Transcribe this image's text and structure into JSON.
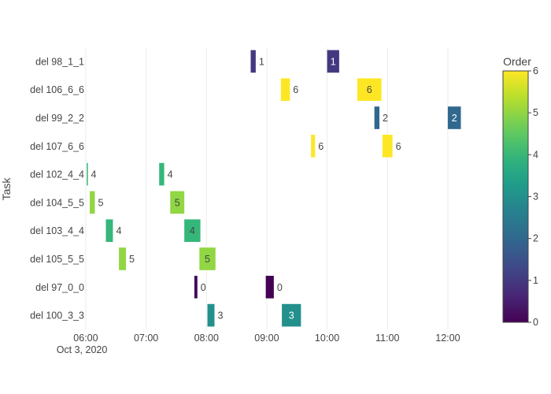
{
  "chart_data": {
    "type": "gantt",
    "title": "",
    "xlabel": "",
    "ylabel": "Task",
    "x_date_label": "Oct 3, 2020",
    "xlim": [
      "05:53",
      "12:40"
    ],
    "x_ticks": [
      "06:00",
      "07:00",
      "08:00",
      "09:00",
      "10:00",
      "11:00",
      "12:00"
    ],
    "tasks": [
      "del 98_1_1",
      "del 106_6_6",
      "del 99_2_2",
      "del 107_6_6",
      "del 102_4_4",
      "del 104_5_5",
      "del 103_4_4",
      "del 105_5_5",
      "del 97_0_0",
      "del 100_3_3"
    ],
    "bars": [
      {
        "task": "del 98_1_1",
        "start": "08:44",
        "end": "08:49",
        "order": 1
      },
      {
        "task": "del 98_1_1",
        "start": "10:00",
        "end": "10:12",
        "order": 1
      },
      {
        "task": "del 106_6_6",
        "start": "09:14",
        "end": "09:23",
        "order": 6
      },
      {
        "task": "del 106_6_6",
        "start": "10:30",
        "end": "10:54",
        "order": 6
      },
      {
        "task": "del 99_2_2",
        "start": "10:47",
        "end": "10:52",
        "order": 2
      },
      {
        "task": "del 99_2_2",
        "start": "12:00",
        "end": "12:13",
        "order": 2
      },
      {
        "task": "del 107_6_6",
        "start": "09:44",
        "end": "09:48",
        "order": 6
      },
      {
        "task": "del 107_6_6",
        "start": "10:55",
        "end": "11:05",
        "order": 6
      },
      {
        "task": "del 102_4_4",
        "start": "06:01",
        "end": "06:02",
        "order": 4
      },
      {
        "task": "del 102_4_4",
        "start": "07:13",
        "end": "07:18",
        "order": 4
      },
      {
        "task": "del 104_5_5",
        "start": "06:04",
        "end": "06:09",
        "order": 5
      },
      {
        "task": "del 104_5_5",
        "start": "07:24",
        "end": "07:38",
        "order": 5
      },
      {
        "task": "del 103_4_4",
        "start": "06:20",
        "end": "06:27",
        "order": 4
      },
      {
        "task": "del 103_4_4",
        "start": "07:38",
        "end": "07:54",
        "order": 4
      },
      {
        "task": "del 105_5_5",
        "start": "06:33",
        "end": "06:40",
        "order": 5
      },
      {
        "task": "del 105_5_5",
        "start": "07:53",
        "end": "08:09",
        "order": 5
      },
      {
        "task": "del 97_0_0",
        "start": "07:48",
        "end": "07:51",
        "order": 0
      },
      {
        "task": "del 97_0_0",
        "start": "08:59",
        "end": "09:07",
        "order": 0
      },
      {
        "task": "del 100_3_3",
        "start": "08:01",
        "end": "08:08",
        "order": 3
      },
      {
        "task": "del 100_3_3",
        "start": "09:15",
        "end": "09:34",
        "order": 3
      }
    ],
    "colorbar": {
      "title": "Order",
      "range": [
        0,
        6
      ],
      "ticks": [
        "0",
        "1",
        "2",
        "3",
        "4",
        "5",
        "6"
      ],
      "colorscale": "viridis"
    },
    "grid": true,
    "legend": "none"
  }
}
